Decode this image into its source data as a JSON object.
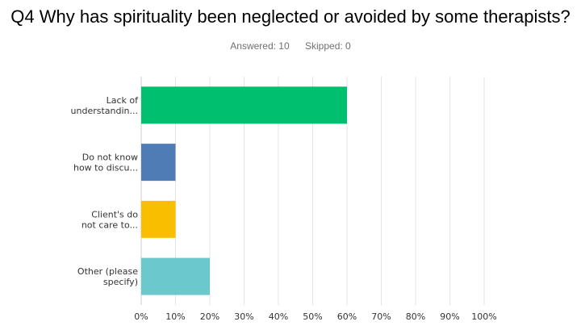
{
  "question": {
    "title": "Q4 Why has spirituality been neglected or avoided by some therapists?",
    "answered_label": "Answered: 10",
    "skipped_label": "Skipped: 0"
  },
  "colors": {
    "grid": "#e3e3e3",
    "axis": "#cccccc",
    "bars": [
      "#00bf6f",
      "#507cb6",
      "#f9be00",
      "#6bc8cd"
    ]
  },
  "chart_data": {
    "type": "bar",
    "orientation": "horizontal",
    "title": "Q4 Why has spirituality been neglected or avoided by some therapists?",
    "categories": [
      [
        "Lack of",
        "understandin..."
      ],
      [
        "Do not know",
        "how to discu..."
      ],
      [
        "Client's do",
        "not care to..."
      ],
      [
        "Other (please",
        "specify)"
      ]
    ],
    "values": [
      60,
      10,
      10,
      20
    ],
    "value_unit": "%",
    "xlim": [
      0,
      100
    ],
    "xticks": [
      "0%",
      "10%",
      "20%",
      "30%",
      "40%",
      "50%",
      "60%",
      "70%",
      "80%",
      "90%",
      "100%"
    ],
    "tick_values": [
      0,
      10,
      20,
      30,
      40,
      50,
      60,
      70,
      80,
      90,
      100
    ],
    "grid": true,
    "legend": "none"
  }
}
